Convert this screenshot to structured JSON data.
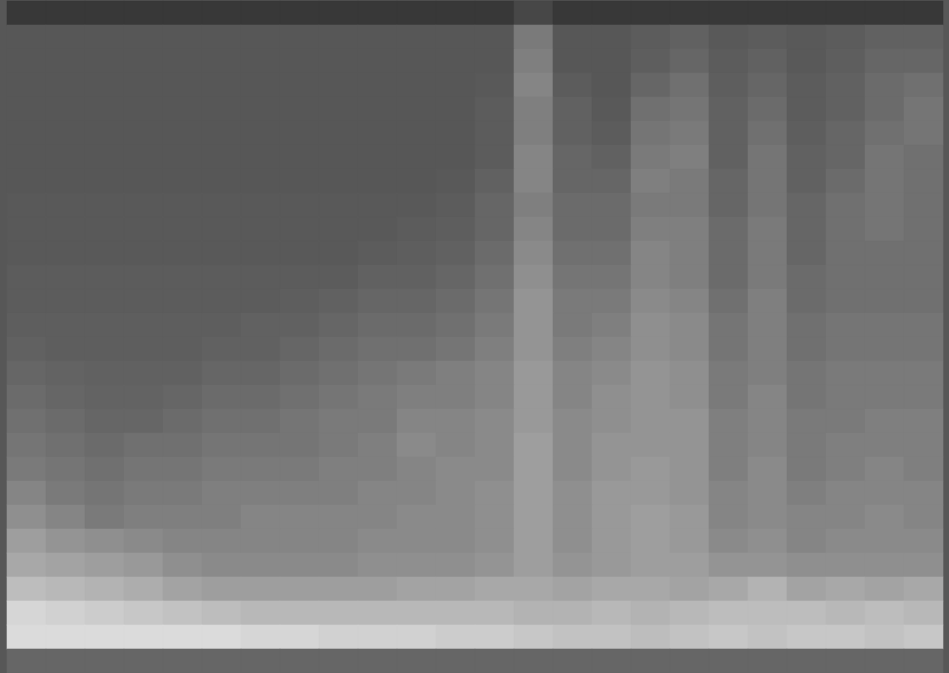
{
  "chart_data": {
    "type": "heatmap",
    "tick_labels": false,
    "cells": [
      [
        22,
        22,
        22,
        22,
        22,
        22,
        22,
        22,
        22,
        22,
        22,
        22,
        22,
        28,
        22,
        22,
        22,
        22,
        22,
        22,
        22,
        22,
        22,
        22
      ],
      [
        34,
        34,
        34,
        34,
        34,
        34,
        34,
        34,
        34,
        34,
        34,
        34,
        34,
        48,
        34,
        34,
        36,
        38,
        35,
        36,
        35,
        36,
        38,
        38
      ],
      [
        34,
        34,
        34,
        34,
        34,
        34,
        34,
        34,
        34,
        34,
        34,
        34,
        34,
        50,
        34,
        34,
        37,
        40,
        36,
        38,
        35,
        37,
        40,
        40
      ],
      [
        34,
        34,
        34,
        34,
        34,
        34,
        34,
        34,
        34,
        34,
        34,
        34,
        35,
        52,
        36,
        34,
        40,
        44,
        37,
        40,
        36,
        38,
        42,
        44
      ],
      [
        34,
        34,
        34,
        34,
        34,
        34,
        34,
        34,
        34,
        34,
        34,
        34,
        36,
        50,
        38,
        35,
        44,
        46,
        38,
        42,
        36,
        38,
        42,
        46
      ],
      [
        34,
        34,
        34,
        34,
        34,
        34,
        34,
        34,
        34,
        34,
        34,
        34,
        36,
        50,
        38,
        36,
        46,
        48,
        38,
        44,
        37,
        40,
        44,
        46
      ],
      [
        34,
        34,
        34,
        34,
        34,
        34,
        34,
        34,
        34,
        34,
        34,
        34,
        36,
        52,
        40,
        38,
        48,
        50,
        38,
        46,
        38,
        40,
        46,
        44
      ],
      [
        34,
        34,
        34,
        34,
        34,
        34,
        34,
        34,
        34,
        34,
        34,
        35,
        38,
        52,
        40,
        40,
        50,
        48,
        40,
        46,
        38,
        42,
        46,
        44
      ],
      [
        35,
        35,
        35,
        35,
        35,
        35,
        35,
        35,
        35,
        35,
        35,
        36,
        40,
        50,
        42,
        42,
        48,
        48,
        40,
        46,
        40,
        44,
        46,
        44
      ],
      [
        35,
        35,
        35,
        35,
        35,
        35,
        35,
        35,
        35,
        35,
        36,
        37,
        40,
        52,
        42,
        42,
        50,
        50,
        42,
        48,
        40,
        44,
        46,
        44
      ],
      [
        35,
        35,
        35,
        35,
        35,
        35,
        35,
        35,
        35,
        36,
        37,
        38,
        42,
        54,
        44,
        44,
        52,
        50,
        42,
        48,
        40,
        44,
        44,
        44
      ],
      [
        36,
        36,
        36,
        36,
        36,
        36,
        36,
        36,
        36,
        38,
        38,
        40,
        44,
        56,
        46,
        46,
        52,
        50,
        42,
        48,
        42,
        44,
        44,
        44
      ],
      [
        36,
        36,
        36,
        36,
        36,
        36,
        36,
        37,
        38,
        40,
        40,
        42,
        46,
        58,
        48,
        48,
        54,
        52,
        44,
        50,
        42,
        44,
        44,
        44
      ],
      [
        37,
        37,
        37,
        37,
        37,
        37,
        38,
        38,
        40,
        42,
        42,
        44,
        48,
        58,
        48,
        50,
        56,
        54,
        46,
        50,
        44,
        46,
        46,
        46
      ],
      [
        38,
        37,
        37,
        37,
        37,
        38,
        38,
        40,
        42,
        44,
        44,
        46,
        50,
        58,
        50,
        52,
        56,
        54,
        46,
        50,
        44,
        46,
        46,
        46
      ],
      [
        40,
        39,
        38,
        38,
        38,
        40,
        40,
        42,
        44,
        46,
        48,
        50,
        52,
        60,
        52,
        54,
        58,
        56,
        48,
        50,
        46,
        48,
        48,
        48
      ],
      [
        42,
        40,
        39,
        39,
        40,
        42,
        42,
        44,
        46,
        48,
        50,
        50,
        52,
        60,
        52,
        56,
        58,
        56,
        48,
        52,
        46,
        48,
        48,
        48
      ],
      [
        44,
        42,
        40,
        40,
        42,
        44,
        44,
        46,
        48,
        48,
        52,
        52,
        54,
        60,
        54,
        56,
        58,
        58,
        50,
        52,
        48,
        48,
        50,
        50
      ],
      [
        46,
        44,
        42,
        44,
        44,
        46,
        46,
        46,
        48,
        50,
        54,
        52,
        54,
        62,
        54,
        58,
        58,
        58,
        50,
        52,
        48,
        50,
        50,
        50
      ],
      [
        48,
        46,
        44,
        46,
        46,
        48,
        48,
        48,
        50,
        50,
        52,
        54,
        54,
        62,
        54,
        58,
        60,
        58,
        50,
        54,
        48,
        50,
        52,
        50
      ],
      [
        52,
        48,
        46,
        48,
        48,
        50,
        50,
        50,
        50,
        52,
        52,
        54,
        56,
        62,
        56,
        60,
        60,
        58,
        52,
        54,
        50,
        52,
        52,
        52
      ],
      [
        56,
        52,
        48,
        50,
        50,
        50,
        52,
        52,
        52,
        52,
        54,
        54,
        56,
        62,
        56,
        60,
        62,
        60,
        52,
        54,
        52,
        52,
        54,
        52
      ],
      [
        62,
        58,
        56,
        54,
        52,
        52,
        52,
        52,
        52,
        54,
        54,
        54,
        56,
        62,
        56,
        60,
        62,
        60,
        54,
        56,
        52,
        54,
        54,
        54
      ],
      [
        66,
        64,
        62,
        60,
        56,
        54,
        54,
        54,
        54,
        56,
        56,
        56,
        58,
        62,
        58,
        60,
        62,
        62,
        58,
        58,
        56,
        56,
        56,
        56
      ],
      [
        74,
        72,
        70,
        68,
        64,
        62,
        62,
        62,
        62,
        62,
        64,
        64,
        66,
        66,
        64,
        66,
        66,
        64,
        66,
        70,
        64,
        66,
        64,
        66
      ],
      [
        84,
        82,
        80,
        78,
        76,
        74,
        72,
        72,
        72,
        72,
        72,
        72,
        72,
        70,
        70,
        72,
        70,
        72,
        74,
        74,
        74,
        72,
        74,
        72
      ],
      [
        86,
        86,
        86,
        86,
        86,
        86,
        84,
        84,
        82,
        82,
        82,
        80,
        80,
        78,
        76,
        76,
        74,
        76,
        78,
        76,
        78,
        78,
        76,
        78
      ],
      [
        40,
        40,
        40,
        40,
        40,
        40,
        40,
        40,
        40,
        40,
        40,
        40,
        40,
        40,
        40,
        40,
        40,
        40,
        40,
        40,
        40,
        40,
        40,
        40
      ]
    ]
  }
}
